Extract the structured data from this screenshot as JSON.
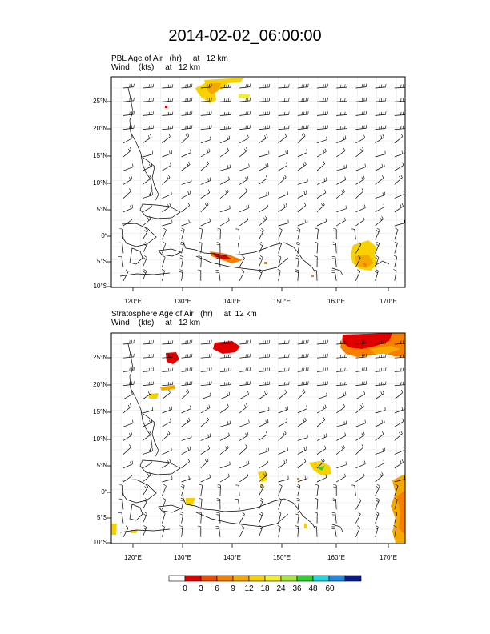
{
  "title": "2014-02-02_06:00:00",
  "panels": [
    {
      "id": "pbl",
      "line1": "PBL Age of Air   (hr)     at   12 km",
      "line2": "Wind    (kts)     at   12 km"
    },
    {
      "id": "strat",
      "line1": "Stratosphere Age of Air   (hr)     at  12 km",
      "line2": "Wind    (kts)     at   12 km"
    }
  ],
  "axes": {
    "lon_labels": [
      "120°E",
      "130°E",
      "140°E",
      "150°E",
      "160°E",
      "170°E"
    ],
    "lat_labels": [
      "25°N",
      "20°N",
      "15°N",
      "10°N",
      "5°N",
      "0°",
      "5°S",
      "10°S"
    ]
  },
  "colorbar": {
    "labels": [
      "0",
      "3",
      "6",
      "9",
      "12",
      "18",
      "24",
      "36",
      "48",
      "60"
    ],
    "colors": [
      "#ffffff",
      "#e00000",
      "#f24a00",
      "#f77f00",
      "#f5a800",
      "#f7d200",
      "#f2ee2a",
      "#a8e63c",
      "#2fd12f",
      "#22d8e0",
      "#2288e6",
      "#0a1a8c"
    ]
  }
}
